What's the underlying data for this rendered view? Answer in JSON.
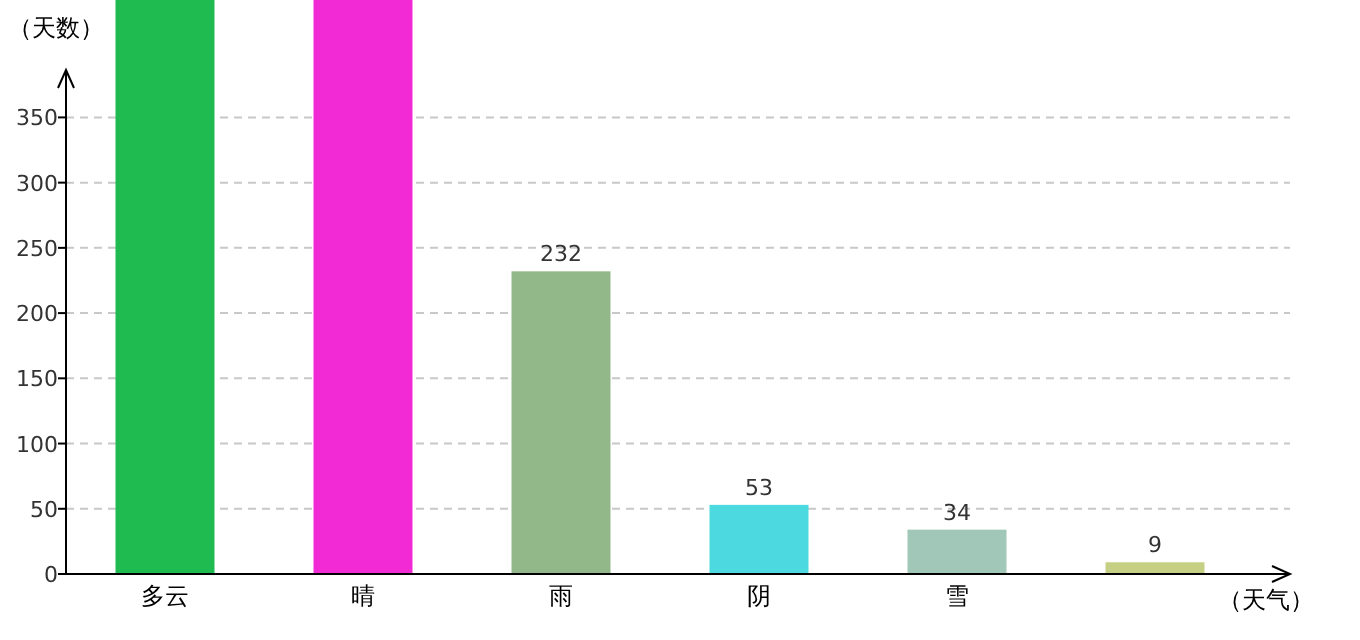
{
  "chart_data": {
    "type": "bar",
    "xlabel": "（天气）",
    "ylabel": "（天数）",
    "categories": [
      "多云",
      "晴",
      "雨",
      "阴",
      "雪",
      null
    ],
    "values": [
      440,
      440,
      232,
      53,
      34,
      9
    ],
    "value_labels": [
      null,
      null,
      "232",
      "53",
      "34",
      "9"
    ],
    "colors": [
      "#1fba50",
      "#f22ad5",
      "#92b88a",
      "#4dd9e0",
      "#a0c7b8",
      "#c5d084"
    ],
    "ylim": [
      0,
      440
    ],
    "yticks": [
      0,
      50,
      100,
      150,
      200,
      250,
      300,
      350
    ],
    "grid": "y"
  }
}
